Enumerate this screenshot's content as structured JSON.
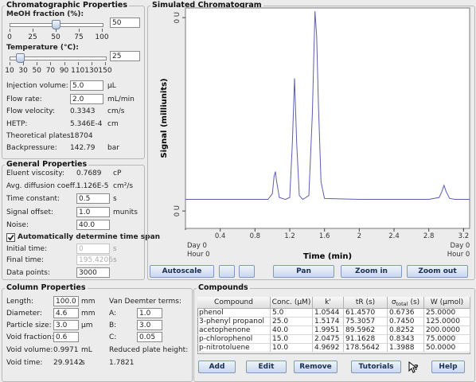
{
  "chromatographic_properties": {
    "title": "Chromatographic Properties",
    "sliders": [
      {
        "label": "MeOH fraction (%):",
        "input": "50",
        "value": 50,
        "ticks": [
          0,
          25,
          50,
          75,
          100
        ]
      },
      {
        "label": "Temperature (°C):",
        "input": "25",
        "value": 25,
        "ticks": [
          10,
          30,
          50,
          70,
          90,
          110,
          130,
          150
        ]
      }
    ],
    "rows": [
      {
        "label": "Injection volume:",
        "value": "5.0",
        "unit": "µL",
        "editable": true
      },
      {
        "label": "Flow rate:",
        "value": "2.0",
        "unit": "mL/min",
        "editable": true
      },
      {
        "label": "Flow velocity:",
        "value": "0.3343",
        "unit": "cm/s"
      },
      {
        "label": "HETP:",
        "value": "5.346E-4",
        "unit": "cm"
      },
      {
        "label": "Theoretical plates:",
        "value": "18704"
      },
      {
        "label": "Backpressure:",
        "value": "142.79",
        "unit": "bar"
      }
    ]
  },
  "general_properties": {
    "title": "General Properties",
    "rows": [
      {
        "label": "Eluent viscosity:",
        "value": "0.7689",
        "unit": "cP"
      },
      {
        "label": "Avg. diffusion coeff.:",
        "value": "1.126E-5",
        "unit": "cm²/s"
      },
      {
        "label": "Time constant:",
        "value": "0.5",
        "unit": "s",
        "editable": true
      },
      {
        "label": "Signal offset:",
        "value": "1.0",
        "unit": "munits",
        "editable": true
      },
      {
        "label": "Noise:",
        "value": "40.0",
        "editable": true
      }
    ],
    "checkbox": {
      "label": "Automatically determine time span",
      "checked": true
    },
    "time_rows": [
      {
        "label": "Initial time:",
        "value": "0",
        "unit": "s",
        "editable": true,
        "disabled": true
      },
      {
        "label": "Final time:",
        "value": "195.4206",
        "unit": "s",
        "editable": true,
        "disabled": true
      },
      {
        "label": "Data points:",
        "value": "3000",
        "editable": true
      }
    ]
  },
  "column_properties": {
    "title": "Column Properties",
    "rows": [
      {
        "label": "Length:",
        "value": "100.0",
        "unit": "mm",
        "editable": true
      },
      {
        "label": "Diameter:",
        "value": "4.6",
        "unit": "mm",
        "editable": true
      },
      {
        "label": "Particle size:",
        "value": "3.0",
        "unit": "µm",
        "editable": true
      },
      {
        "label": "Void fraction:",
        "value": "0.6",
        "editable": true
      },
      {
        "label": "Void volume:",
        "value": "0.9971",
        "unit": "mL"
      },
      {
        "label": "Void time:",
        "value": "29.9142",
        "unit": "s"
      }
    ],
    "van_deemter": {
      "title": "Van Deemter terms:",
      "terms": [
        {
          "label": "A:",
          "value": "1.0"
        },
        {
          "label": "B:",
          "value": "3.0"
        },
        {
          "label": "C:",
          "value": "0.05"
        }
      ],
      "reduced_label": "Reduced plate height:",
      "reduced_value": "1.7821"
    }
  },
  "chart_data": {
    "type": "line",
    "title": "Simulated Chromatogram",
    "x_label": "Time (min)",
    "y_label": "Signal (milliunits)",
    "x": [
      0.0,
      0.4,
      0.8,
      0.95,
      1.0,
      1.02,
      1.035,
      1.05,
      1.08,
      1.15,
      1.2,
      1.23,
      1.255,
      1.28,
      1.31,
      1.35,
      1.42,
      1.46,
      1.49,
      1.51,
      1.53,
      1.56,
      1.6,
      2.0,
      2.4,
      2.8,
      2.92,
      2.95,
      2.975,
      3.0,
      3.04,
      3.1,
      3.27
    ],
    "series": [
      {
        "color": "#5b5fb0",
        "values": [
          0.6,
          0.6,
          0.6,
          0.6,
          0.9,
          1.8,
          2.04,
          1.5,
          0.7,
          0.6,
          0.7,
          3.5,
          6.86,
          3.5,
          0.8,
          0.6,
          0.8,
          5.0,
          10.33,
          9.0,
          5.5,
          1.5,
          0.65,
          0.6,
          0.6,
          0.6,
          0.7,
          1.0,
          1.33,
          1.0,
          0.65,
          0.6,
          0.6
        ]
      }
    ],
    "xlim": [
      0,
      3.27
    ],
    "ylim": [
      -0.9,
      10.5
    ],
    "xticks": [
      0.4,
      0.8,
      1.2,
      1.6,
      2.0,
      2.4,
      2.8,
      3.2
    ],
    "yticks": [
      {
        "value": 0,
        "label": "0 U"
      },
      {
        "value": 10,
        "label": "0 U"
      }
    ],
    "x_time_labels": [
      {
        "value": 0,
        "day": "Day 0",
        "hour": "Hour 0"
      },
      {
        "value": 3.2,
        "day": "Day 0",
        "hour": "Hour 0"
      }
    ],
    "grid": false,
    "toolbar": [
      "Autoscale",
      "Pan",
      "Zoom in",
      "Zoom out"
    ]
  },
  "compounds": {
    "title": "Compounds",
    "headers": [
      "Compound",
      "Conc. (µM)",
      "k'",
      "tR (s)",
      {
        "symbol": "σ",
        "sub": "total",
        "unit": "(s)"
      },
      "W (µmol)"
    ],
    "rows": [
      [
        "phenol",
        "5.0",
        "1.0544",
        "61.4570",
        "0.6736",
        "25.0000"
      ],
      [
        "3-phenyl propanol",
        "25.0",
        "1.5174",
        "75.3057",
        "0.7450",
        "125.0000"
      ],
      [
        "acetophenone",
        "40.0",
        "1.9951",
        "89.5962",
        "0.8252",
        "200.0000"
      ],
      [
        "p-chlorophenol",
        "15.0",
        "2.0475",
        "91.1628",
        "0.8343",
        "75.0000"
      ],
      [
        "p-nitrotoluene",
        "10.0",
        "4.9692",
        "178.5642",
        "1.3988",
        "50.0000"
      ]
    ],
    "buttons": [
      "Add",
      "Edit",
      "Remove",
      "Tutorials",
      "Help"
    ],
    "context_help_icon": "?"
  }
}
